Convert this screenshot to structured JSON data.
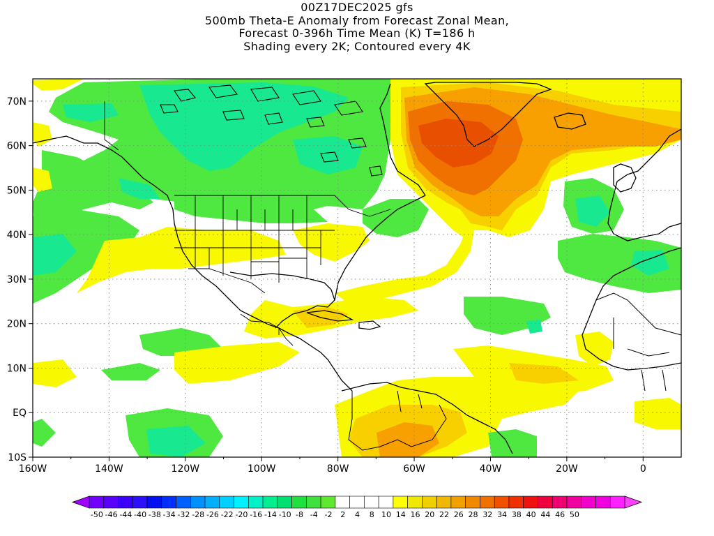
{
  "title": {
    "line1": "00Z17DEC2025 gfs",
    "line2": "500mb Theta-E Anomaly from Forecast Zonal Mean,",
    "line3": "Forecast 0-396h Time Mean (K) T=186 h",
    "line4": "Shading every 2K; Contoured every 4K"
  },
  "map": {
    "lon_range": [
      -160,
      10
    ],
    "lat_range": [
      -10,
      75
    ],
    "lon_ticks": [
      {
        "value": -160,
        "label": "160W"
      },
      {
        "value": -140,
        "label": "140W"
      },
      {
        "value": -120,
        "label": "120W"
      },
      {
        "value": -100,
        "label": "100W"
      },
      {
        "value": -80,
        "label": "80W"
      },
      {
        "value": -60,
        "label": "60W"
      },
      {
        "value": -40,
        "label": "40W"
      },
      {
        "value": -20,
        "label": "20W"
      },
      {
        "value": 0,
        "label": "0"
      }
    ],
    "lat_ticks": [
      {
        "value": 70,
        "label": "70N"
      },
      {
        "value": 60,
        "label": "60N"
      },
      {
        "value": 50,
        "label": "50N"
      },
      {
        "value": 40,
        "label": "40N"
      },
      {
        "value": 30,
        "label": "30N"
      },
      {
        "value": 20,
        "label": "20N"
      },
      {
        "value": 10,
        "label": "10N"
      },
      {
        "value": 0,
        "label": "EQ"
      },
      {
        "value": -10,
        "label": "10S"
      }
    ],
    "grid_lines": "dotted"
  },
  "colorbar": {
    "left_arrow_color": "#a000ff",
    "right_arrow_color": "#ff40ff",
    "bins": [
      {
        "color": "#7000ff"
      },
      {
        "color": "#5a00ff"
      },
      {
        "color": "#3c00ff"
      },
      {
        "color": "#2a10ff"
      },
      {
        "color": "#0010f0"
      },
      {
        "color": "#0030ff"
      },
      {
        "color": "#0060ff"
      },
      {
        "color": "#0090ff"
      },
      {
        "color": "#00b0ff"
      },
      {
        "color": "#00d0ff"
      },
      {
        "color": "#00f0ff"
      },
      {
        "color": "#00f0c8"
      },
      {
        "color": "#00ee90"
      },
      {
        "color": "#00e070"
      },
      {
        "color": "#20e040"
      },
      {
        "color": "#40e040"
      },
      {
        "color": "#60e830"
      },
      {
        "color": "#ffffff"
      },
      {
        "color": "#ffffff"
      },
      {
        "color": "#ffffff"
      },
      {
        "color": "#ffffff"
      },
      {
        "color": "#ffff00"
      },
      {
        "color": "#f0e800"
      },
      {
        "color": "#f0d000"
      },
      {
        "color": "#f0b800"
      },
      {
        "color": "#f0a000"
      },
      {
        "color": "#f08800"
      },
      {
        "color": "#f07000"
      },
      {
        "color": "#f05000"
      },
      {
        "color": "#f03000"
      },
      {
        "color": "#f01010"
      },
      {
        "color": "#f00040"
      },
      {
        "color": "#f00070"
      },
      {
        "color": "#f000a0"
      },
      {
        "color": "#f000c8"
      },
      {
        "color": "#f000e0"
      },
      {
        "color": "#ff20ff"
      }
    ],
    "labels": [
      "-50",
      "-46",
      "-44",
      "-40",
      "-38",
      "-34",
      "-32",
      "-28",
      "-26",
      "-22",
      "-20",
      "-16",
      "-14",
      "-10",
      "-8",
      "-4",
      "-2",
      "2",
      "4",
      "8",
      "10",
      "14",
      "16",
      "20",
      "22",
      "26",
      "28",
      "32",
      "34",
      "38",
      "40",
      "44",
      "46",
      "50"
    ]
  },
  "colors": {
    "green": "#4ee840",
    "teal": "#18e890",
    "yellow": "#f8f800",
    "gold": "#f8d000",
    "orange": "#f8a000",
    "dark_orange": "#f07000",
    "red_orange": "#e85000"
  }
}
